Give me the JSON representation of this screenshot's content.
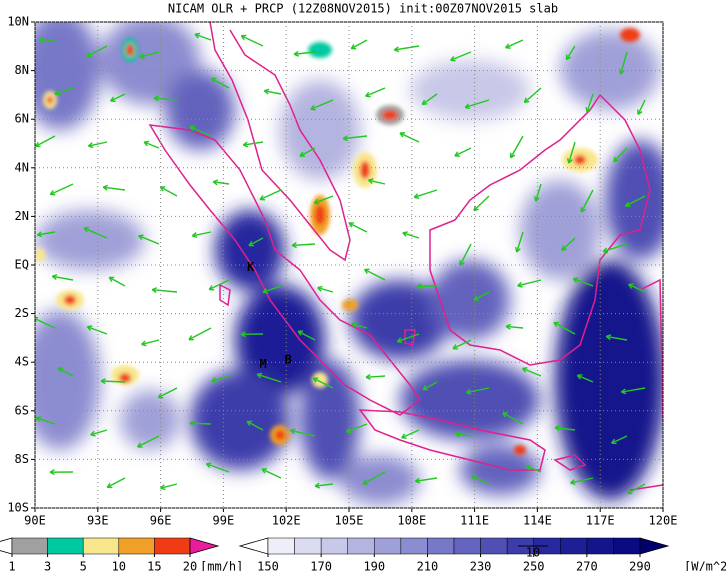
{
  "title": "NICAM OLR + PRCP (12Z08NOV2015) init:00Z07NOV2015 slab",
  "map": {
    "lonlim": [
      90,
      120
    ],
    "latlim": [
      -10,
      10
    ],
    "lonticks": [
      {
        "value": 90,
        "label": "90E"
      },
      {
        "value": 93,
        "label": "93E"
      },
      {
        "value": 96,
        "label": "96E"
      },
      {
        "value": 99,
        "label": "99E"
      },
      {
        "value": 102,
        "label": "102E"
      },
      {
        "value": 105,
        "label": "105E"
      },
      {
        "value": 108,
        "label": "108E"
      },
      {
        "value": 111,
        "label": "111E"
      },
      {
        "value": 114,
        "label": "114E"
      },
      {
        "value": 117,
        "label": "117E"
      },
      {
        "value": 120,
        "label": "120E"
      }
    ],
    "latticks": [
      {
        "value": 10,
        "label": "10N"
      },
      {
        "value": 8,
        "label": "8N"
      },
      {
        "value": 6,
        "label": "6N"
      },
      {
        "value": 4,
        "label": "4N"
      },
      {
        "value": 2,
        "label": "2N"
      },
      {
        "value": 0,
        "label": "EQ"
      },
      {
        "value": -2,
        "label": "2S"
      },
      {
        "value": -4,
        "label": "4S"
      },
      {
        "value": -6,
        "label": "6S"
      },
      {
        "value": -8,
        "label": "8S"
      },
      {
        "value": -10,
        "label": "10S"
      }
    ],
    "sites": [
      {
        "label": "K",
        "lon": 100.3,
        "lat": -0.1
      },
      {
        "label": "M",
        "lon": 100.9,
        "lat": -4.1
      },
      {
        "label": "B",
        "lon": 102.1,
        "lat": -3.9
      }
    ],
    "vector_reference": "10"
  },
  "precip_colorbar": {
    "levels": [
      1,
      3,
      5,
      10,
      15,
      20
    ],
    "colors": [
      "#ffffff",
      "#a0a0a0",
      "#00c8a0",
      "#f8e68c",
      "#f0a028",
      "#f03c14",
      "#e81c9c"
    ],
    "units": "[mm/h]"
  },
  "olr_colorbar": {
    "levels": [
      150,
      170,
      190,
      210,
      230,
      250,
      270,
      290
    ],
    "colors": [
      "#ffffff",
      "#eeeef8",
      "#dcdcf0",
      "#c8c8e8",
      "#b4b4e0",
      "#a0a0d8",
      "#8c8cd0",
      "#7878c8",
      "#6464be",
      "#5050b4",
      "#3c3caa",
      "#2828a0",
      "#1e1e96",
      "#14148c",
      "#0a0a82",
      "#00006e"
    ],
    "units": "[W/m^2]"
  }
}
